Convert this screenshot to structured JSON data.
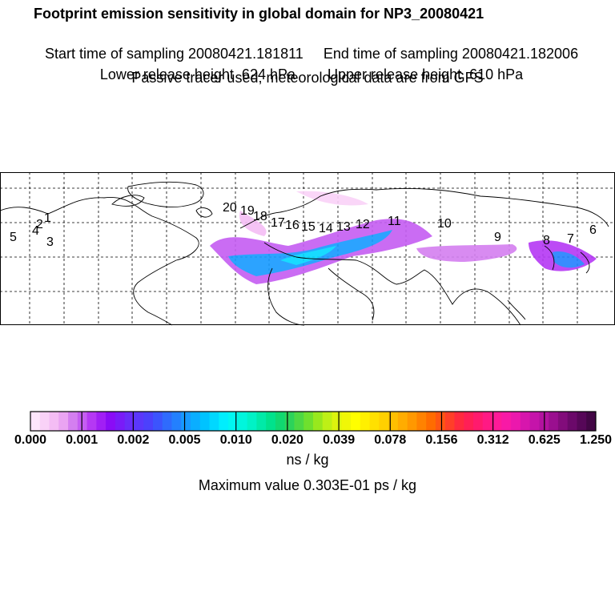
{
  "header": {
    "title": "Footprint emission sensitivity in global domain for NP3_20080421",
    "sampling_start": "Start time of sampling 20080421.181811",
    "sampling_end": "End time of sampling 20080421.182006",
    "release_lower": "Lower release height  624 hPa",
    "release_upper": "Upper release height  610 hPa",
    "note": "Passive tracer used, meteorological data are from GFS"
  },
  "map": {
    "trajectory_labels": [
      "1",
      "2",
      "3",
      "4",
      "5",
      "6",
      "7",
      "8",
      "9",
      "10",
      "11",
      "12",
      "13",
      "14",
      "15",
      "16",
      "17",
      "18",
      "19",
      "20"
    ]
  },
  "colorbar": {
    "tick_labels": [
      "0.000",
      "0.001",
      "0.002",
      "0.005",
      "0.010",
      "0.020",
      "0.039",
      "0.078",
      "0.156",
      "0.312",
      "0.625",
      "1.250"
    ],
    "unit": "ns / kg",
    "max_value_text": "Maximum value  0.303E-01 ps / kg",
    "colors": [
      "#fde6fb",
      "#f9d2f7",
      "#f4bdf4",
      "#eaa4f2",
      "#d47ff0",
      "#c55df2",
      "#b538f4",
      "#a11ff5",
      "#8a0cf6",
      "#7a1bf8",
      "#6a2cf9",
      "#5b37fb",
      "#4c41fc",
      "#3c54fd",
      "#2f6bfd",
      "#2380fe",
      "#169aff",
      "#0aaeff",
      "#00c3ff",
      "#00d8ff",
      "#00eefd",
      "#00f7f1",
      "#00f6dd",
      "#00f2c6",
      "#00eaa8",
      "#00e28c",
      "#10d870",
      "#2cd35a",
      "#4dd843",
      "#6fe02e",
      "#98e81d",
      "#bef016",
      "#dcf30e",
      "#f0f707",
      "#ffff00",
      "#fff000",
      "#ffe000",
      "#ffd000",
      "#ffbf00",
      "#ffac00",
      "#ff9800",
      "#ff8200",
      "#ff6c00",
      "#ff5612",
      "#ff3f28",
      "#ff2a3f",
      "#ff1f56",
      "#ff1a6d",
      "#ff1984",
      "#ff1a98",
      "#f819a6",
      "#eb18ad",
      "#d716ad",
      "#c514aa",
      "#b2129f",
      "#9a0f8f",
      "#820c7b",
      "#6b096a",
      "#560758",
      "#420645"
    ]
  }
}
